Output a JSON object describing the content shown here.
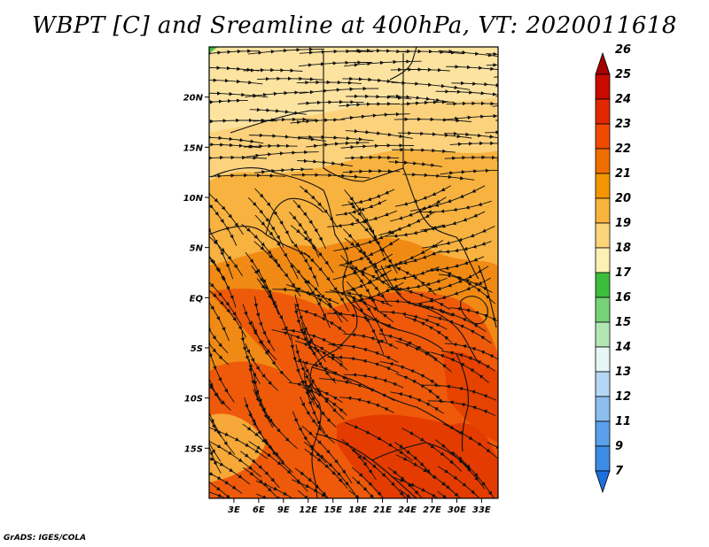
{
  "title": "WBPT [C] and Sreamline at 400hPa, VT: 2020011618",
  "credit": "GrADS: IGES/COLA",
  "map": {
    "lon_range_deg": [
      0,
      35
    ],
    "lat_range_deg": [
      -20,
      25
    ],
    "lat_ticks": [
      {
        "value": 20,
        "label": "20N"
      },
      {
        "value": 15,
        "label": "15N"
      },
      {
        "value": 10,
        "label": "10N"
      },
      {
        "value": 5,
        "label": "5N"
      },
      {
        "value": 0,
        "label": "EQ"
      },
      {
        "value": -5,
        "label": "5S"
      },
      {
        "value": -10,
        "label": "10S"
      },
      {
        "value": -15,
        "label": "15S"
      }
    ],
    "lon_ticks": [
      {
        "value": 3,
        "label": "3E"
      },
      {
        "value": 6,
        "label": "6E"
      },
      {
        "value": 9,
        "label": "9E"
      },
      {
        "value": 12,
        "label": "12E"
      },
      {
        "value": 15,
        "label": "15E"
      },
      {
        "value": 18,
        "label": "18E"
      },
      {
        "value": 21,
        "label": "21E"
      },
      {
        "value": 24,
        "label": "24E"
      },
      {
        "value": 27,
        "label": "27E"
      },
      {
        "value": 30,
        "label": "30E"
      },
      {
        "value": 33,
        "label": "33E"
      }
    ]
  },
  "colorbar": {
    "levels": [
      {
        "label": "26",
        "color": "#a50000"
      },
      {
        "label": "25",
        "color": "#c80a00"
      },
      {
        "label": "24",
        "color": "#e22800"
      },
      {
        "label": "23",
        "color": "#f04a00"
      },
      {
        "label": "22",
        "color": "#f06e00"
      },
      {
        "label": "21",
        "color": "#f49600"
      },
      {
        "label": "20",
        "color": "#f8b43c"
      },
      {
        "label": "19",
        "color": "#fcd47a"
      },
      {
        "label": "18",
        "color": "#fcf0b4"
      },
      {
        "label": "17",
        "color": "#3cbe3c"
      },
      {
        "label": "16",
        "color": "#78d278"
      },
      {
        "label": "15",
        "color": "#b4e6b4"
      },
      {
        "label": "14",
        "color": "#e6f5f5"
      },
      {
        "label": "13",
        "color": "#b4d7f5"
      },
      {
        "label": "12",
        "color": "#8cbef0"
      },
      {
        "label": "11",
        "color": "#5aa0eb"
      },
      {
        "label": "9",
        "color": "#3c8ce6"
      },
      {
        "label": "7",
        "color": "#1e6edc"
      }
    ]
  }
}
